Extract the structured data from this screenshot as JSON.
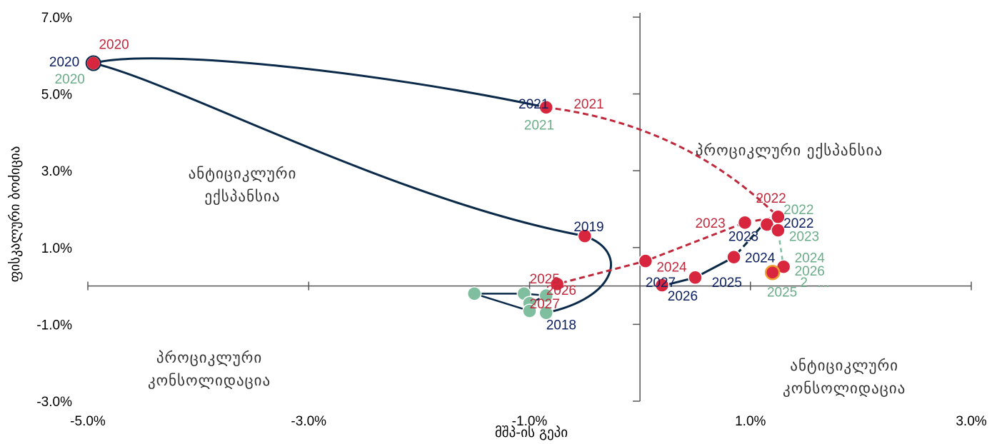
{
  "colors": {
    "navy": "#0b2a4a",
    "navy_text": "#0d2060",
    "red": "#d7263d",
    "red_text": "#c0283c",
    "green": "#7fbf9f",
    "green_text": "#6aad88",
    "axis": "#555555"
  },
  "chart_data": {
    "type": "scatter",
    "xlabel": "მშპ-ის გეპი",
    "ylabel": "ფისკალური ბოძიცია",
    "xlim": [
      -5.0,
      3.0
    ],
    "ylim": [
      -3.0,
      7.0
    ],
    "x_ticks": [
      "-5.0%",
      "-3.0%",
      "-1.0%",
      "1.0%",
      "3.0%"
    ],
    "y_ticks": [
      "7.0%",
      "5.0%",
      "3.0%",
      "1.0%",
      "-1.0%",
      "-3.0%"
    ],
    "quadrants": {
      "top_left": [
        "ანტიციკლური",
        "ექსპანსია"
      ],
      "top_right": [
        "პროციკლური ექსპანსია"
      ],
      "bottom_left": [
        "პროციკლური",
        "კონსოლიდაცია"
      ],
      "bottom_right": [
        "ანტიციკლური",
        "კონსოლიდაცია"
      ]
    },
    "series": [
      {
        "color": "navy",
        "line": "solid-then-dashed",
        "points": [
          {
            "year": "2018",
            "x": -0.85,
            "y": -0.7
          },
          {
            "year": "2019",
            "x": -0.5,
            "y": 1.3
          },
          {
            "year": "2020",
            "x": -4.95,
            "y": 5.8
          },
          {
            "year": "2021",
            "x": -0.85,
            "y": 4.65
          },
          {
            "year": "2022",
            "x": 1.25,
            "y": 1.8
          },
          {
            "year": "2023",
            "x": 1.1,
            "y": 1.55
          },
          {
            "year": "2024",
            "x": 0.85,
            "y": 0.75
          },
          {
            "year": "2025",
            "x": 0.5,
            "y": 0.22
          },
          {
            "year": "2026",
            "x": 0.2,
            "y": 0.0
          },
          {
            "year": "2027",
            "x": 0.18,
            "y": 0.02
          }
        ]
      },
      {
        "color": "red",
        "line": "dashed",
        "points": [
          {
            "year": "2020",
            "x": -4.95,
            "y": 5.8
          },
          {
            "year": "2021",
            "x": -0.85,
            "y": 4.65
          },
          {
            "year": "2022",
            "x": 1.25,
            "y": 1.8
          },
          {
            "year": "2023",
            "x": 0.95,
            "y": 1.65
          },
          {
            "year": "2024",
            "x": 0.05,
            "y": 0.65
          },
          {
            "year": "2025",
            "x": -0.75,
            "y": 0.05
          },
          {
            "year": "2026",
            "x": -0.85,
            "y": -0.25
          },
          {
            "year": "2027",
            "x": -1.0,
            "y": -0.45
          }
        ]
      },
      {
        "color": "green",
        "line": "dashed",
        "points": [
          {
            "year": "2020",
            "x": -4.95,
            "y": 5.8
          },
          {
            "year": "2021",
            "x": -0.85,
            "y": 4.65
          },
          {
            "year": "2022",
            "x": 1.25,
            "y": 1.8
          },
          {
            "year": "2023",
            "x": 1.25,
            "y": 1.45
          },
          {
            "year": "2024",
            "x": 1.3,
            "y": 0.5
          },
          {
            "year": "2025",
            "x": 1.2,
            "y": 0.35
          },
          {
            "year": "2026",
            "x": 1.2,
            "y": 0.3
          },
          {
            "year": "2027",
            "x": 1.2,
            "y": 0.3
          }
        ]
      }
    ],
    "labels": [
      {
        "text": "2020",
        "color": "navy",
        "x": -5.35,
        "y": 5.85
      },
      {
        "text": "2020",
        "color": "red",
        "x": -4.9,
        "y": 6.3
      },
      {
        "text": "2020",
        "color": "green",
        "x": -5.3,
        "y": 5.4
      },
      {
        "text": "2021",
        "color": "navy",
        "x": -1.1,
        "y": 4.75
      },
      {
        "text": "2021",
        "color": "red",
        "x": -0.6,
        "y": 4.75
      },
      {
        "text": "2021",
        "color": "green",
        "x": -1.05,
        "y": 4.2
      },
      {
        "text": "2019",
        "color": "navy",
        "x": -0.6,
        "y": 1.55
      },
      {
        "text": "2018",
        "color": "navy",
        "x": -0.85,
        "y": -1.0
      },
      {
        "text": "2022",
        "color": "red",
        "x": 1.05,
        "y": 2.3
      },
      {
        "text": "2022",
        "color": "green",
        "x": 1.3,
        "y": 2.0
      },
      {
        "text": "2022",
        "color": "navy",
        "x": 1.3,
        "y": 1.65
      },
      {
        "text": "2023",
        "color": "red",
        "x": 0.5,
        "y": 1.65
      },
      {
        "text": "2023",
        "color": "navy",
        "x": 0.8,
        "y": 1.3
      },
      {
        "text": "2023",
        "color": "green",
        "x": 1.35,
        "y": 1.3
      },
      {
        "text": "2024",
        "color": "red",
        "x": 0.15,
        "y": 0.5
      },
      {
        "text": "2024",
        "color": "navy",
        "x": 0.95,
        "y": 0.75
      },
      {
        "text": "2024",
        "color": "green",
        "x": 1.4,
        "y": 0.75
      },
      {
        "text": "2026",
        "color": "green",
        "x": 1.4,
        "y": 0.4
      },
      {
        "text": "2",
        "color": "green",
        "x": 1.45,
        "y": 0.1
      },
      {
        "text": "2025",
        "color": "green",
        "x": 1.15,
        "y": -0.15
      },
      {
        "text": "…",
        "color": "green",
        "x": 1.6,
        "y": 0.1
      },
      {
        "text": "2025",
        "color": "red",
        "x": -1.0,
        "y": 0.2
      },
      {
        "text": "2026",
        "color": "red",
        "x": -0.85,
        "y": -0.1
      },
      {
        "text": "2027",
        "color": "red",
        "x": -1.0,
        "y": -0.45
      },
      {
        "text": "2027",
        "color": "navy",
        "x": 0.05,
        "y": 0.1
      },
      {
        "text": "2025",
        "color": "navy",
        "x": 0.65,
        "y": 0.1
      },
      {
        "text": "2026",
        "color": "navy",
        "x": 0.25,
        "y": -0.25
      }
    ]
  }
}
